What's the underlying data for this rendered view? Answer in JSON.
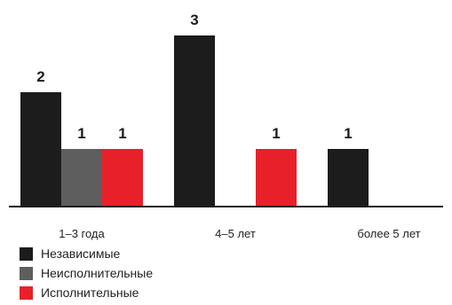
{
  "colors": {
    "Независимые": "#1c1c1c",
    "Неисполнительные": "#5e5e5e",
    "Исполнительные": "#e8202a",
    "axis": "#1c1c1c"
  },
  "legend_items": [
    {
      "label": "Независимые",
      "color": "#1c1c1c"
    },
    {
      "label": "Неисполнительные",
      "color": "#5e5e5e"
    },
    {
      "label": "Исполнительные",
      "color": "#e8202a"
    }
  ],
  "chart_data": {
    "type": "bar",
    "title": "",
    "xlabel": "",
    "ylabel": "",
    "categories": [
      "1–3 года",
      "4–5 лет",
      "более 5 лет"
    ],
    "series": [
      {
        "name": "Независимые",
        "values": [
          2,
          3,
          1
        ]
      },
      {
        "name": "Неисполнительные",
        "values": [
          1,
          0,
          0
        ]
      },
      {
        "name": "Исполнительные",
        "values": [
          1,
          1,
          0
        ]
      }
    ],
    "ylim": [
      0,
      3
    ],
    "grid": false,
    "data_labels": true,
    "legend_position": "bottom-left"
  }
}
